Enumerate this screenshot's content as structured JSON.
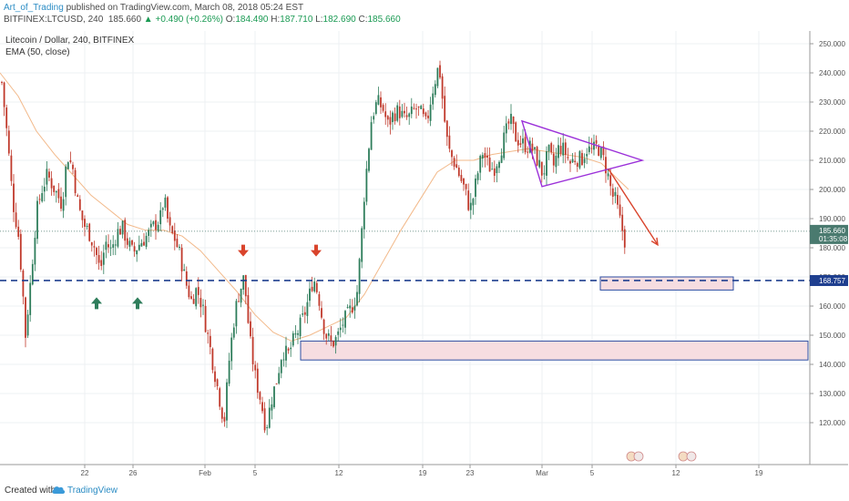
{
  "header": {
    "author": "Art_of_Trading",
    "published_text": "published on TradingView.com, March 08, 2018 05:24 EST",
    "ticker": "BITFINEX:LTCUSD, 240",
    "last": "185.660",
    "change": "▲ +0.490 (+0.26%)",
    "o_label": "O:",
    "o_value": "184.490",
    "h_label": "H:",
    "h_value": "187.710",
    "l_label": "L:",
    "l_value": "182.690",
    "c_label": "C:",
    "c_value": "185.660"
  },
  "legend": {
    "symbol": "Litecoin / Dollar, 240, BITFINEX",
    "indicator": "EMA (50, close)"
  },
  "footer": {
    "created": "Created with",
    "brand": "TradingView"
  },
  "colors": {
    "bull": "#2e7d5b",
    "bear": "#c0392b",
    "ema": "#f2b98a",
    "support": "#1f3f8f",
    "zone_fill": "#f6dde1",
    "zone_border": "#2d4ea2",
    "triangle": "#9b30d9",
    "arrow_down": "#d9442c",
    "arrow_up": "#2e7d5b",
    "price_tag": "#4a7a6f",
    "level_tag": "#1f3f8f"
  },
  "chart_data": {
    "type": "candlestick",
    "title": "Litecoin / Dollar, 240, BITFINEX",
    "indicator": "EMA (50, close)",
    "y_ticks": [
      120,
      130,
      140,
      150,
      160,
      170,
      180,
      190,
      200,
      210,
      220,
      230,
      240,
      250
    ],
    "y_tick_labels": [
      "120.000",
      "130.000",
      "140.000",
      "150.000",
      "160.000",
      "170.000",
      "180.000",
      "190.000",
      "200.000",
      "210.000",
      "220.000",
      "230.000",
      "240.000",
      "250.000"
    ],
    "x_ticks": [
      "22",
      "26",
      "Feb",
      "5",
      "12",
      "19",
      "23",
      "Mar",
      "5",
      "12",
      "19"
    ],
    "ylim": [
      113,
      255
    ],
    "current_price": 185.66,
    "current_price_label": "185.660",
    "countdown": "01:35:08",
    "support_level": 168.757,
    "support_label": "168.757",
    "waypoints": [
      [
        0,
        243
      ],
      [
        8,
        218
      ],
      [
        14,
        196
      ],
      [
        20,
        185
      ],
      [
        24,
        170
      ],
      [
        28,
        150
      ],
      [
        34,
        170
      ],
      [
        40,
        192
      ],
      [
        46,
        200
      ],
      [
        52,
        205
      ],
      [
        60,
        200
      ],
      [
        68,
        195
      ],
      [
        74,
        212
      ],
      [
        80,
        207
      ],
      [
        86,
        194
      ],
      [
        92,
        188
      ],
      [
        98,
        185
      ],
      [
        104,
        180
      ],
      [
        110,
        172
      ],
      [
        116,
        182
      ],
      [
        122,
        179
      ],
      [
        128,
        185
      ],
      [
        134,
        187
      ],
      [
        140,
        182
      ],
      [
        146,
        178
      ],
      [
        152,
        181
      ],
      [
        158,
        183
      ],
      [
        164,
        185
      ],
      [
        170,
        188
      ],
      [
        176,
        190
      ],
      [
        180,
        197
      ],
      [
        186,
        186
      ],
      [
        192,
        183
      ],
      [
        198,
        177
      ],
      [
        204,
        168
      ],
      [
        210,
        162
      ],
      [
        216,
        166
      ],
      [
        222,
        160
      ],
      [
        228,
        150
      ],
      [
        234,
        140
      ],
      [
        240,
        130
      ],
      [
        246,
        120
      ],
      [
        252,
        143
      ],
      [
        258,
        158
      ],
      [
        262,
        164
      ],
      [
        268,
        170
      ],
      [
        274,
        149
      ],
      [
        280,
        136
      ],
      [
        286,
        128
      ],
      [
        292,
        118
      ],
      [
        298,
        128
      ],
      [
        304,
        135
      ],
      [
        310,
        145
      ],
      [
        316,
        143
      ],
      [
        322,
        148
      ],
      [
        328,
        152
      ],
      [
        334,
        157
      ],
      [
        340,
        164
      ],
      [
        344,
        170
      ],
      [
        350,
        163
      ],
      [
        354,
        155
      ],
      [
        358,
        150
      ],
      [
        364,
        147
      ],
      [
        370,
        149
      ],
      [
        376,
        154
      ],
      [
        382,
        157
      ],
      [
        388,
        161
      ],
      [
        392,
        165
      ],
      [
        396,
        180
      ],
      [
        400,
        199
      ],
      [
        404,
        212
      ],
      [
        408,
        225
      ],
      [
        414,
        230
      ],
      [
        420,
        228
      ],
      [
        426,
        222
      ],
      [
        432,
        226
      ],
      [
        438,
        227
      ],
      [
        444,
        224
      ],
      [
        450,
        225
      ],
      [
        456,
        228
      ],
      [
        462,
        226
      ],
      [
        468,
        222
      ],
      [
        474,
        233
      ],
      [
        478,
        238
      ],
      [
        482,
        243
      ],
      [
        486,
        230
      ],
      [
        490,
        218
      ],
      [
        494,
        212
      ],
      [
        498,
        210
      ],
      [
        504,
        205
      ],
      [
        510,
        200
      ],
      [
        516,
        193
      ],
      [
        520,
        198
      ],
      [
        524,
        205
      ],
      [
        530,
        213
      ],
      [
        536,
        208
      ],
      [
        542,
        207
      ],
      [
        548,
        212
      ],
      [
        554,
        218
      ],
      [
        560,
        224
      ],
      [
        566,
        218
      ],
      [
        572,
        216
      ],
      [
        578,
        215
      ],
      [
        584,
        214
      ],
      [
        590,
        210
      ],
      [
        596,
        205
      ],
      [
        602,
        213
      ],
      [
        608,
        208
      ],
      [
        614,
        215
      ],
      [
        620,
        213
      ],
      [
        626,
        209
      ],
      [
        632,
        211
      ],
      [
        638,
        210
      ],
      [
        644,
        214
      ],
      [
        650,
        213
      ],
      [
        656,
        215
      ],
      [
        660,
        212
      ],
      [
        664,
        209
      ],
      [
        668,
        204
      ],
      [
        672,
        198
      ],
      [
        676,
        196
      ],
      [
        680,
        190
      ],
      [
        684,
        185
      ],
      [
        687,
        181
      ],
      [
        690,
        185
      ]
    ],
    "ema_points": [
      [
        0,
        240
      ],
      [
        20,
        232
      ],
      [
        40,
        220
      ],
      [
        60,
        212
      ],
      [
        80,
        205
      ],
      [
        100,
        198
      ],
      [
        120,
        193
      ],
      [
        140,
        188
      ],
      [
        160,
        186
      ],
      [
        180,
        186
      ],
      [
        200,
        184
      ],
      [
        220,
        179
      ],
      [
        240,
        172
      ],
      [
        260,
        165
      ],
      [
        280,
        157
      ],
      [
        300,
        151
      ],
      [
        320,
        148
      ],
      [
        340,
        150
      ],
      [
        360,
        153
      ],
      [
        380,
        156
      ],
      [
        400,
        164
      ],
      [
        420,
        175
      ],
      [
        440,
        186
      ],
      [
        460,
        196
      ],
      [
        480,
        206
      ],
      [
        500,
        210
      ],
      [
        520,
        210
      ],
      [
        540,
        212
      ],
      [
        560,
        213
      ],
      [
        580,
        214
      ],
      [
        600,
        213
      ],
      [
        620,
        212
      ],
      [
        640,
        211
      ],
      [
        660,
        209
      ],
      [
        680,
        203
      ],
      [
        690,
        200
      ]
    ],
    "annotations": {
      "triangle": [
        [
          573,
          223.5
        ],
        [
          705,
          210
        ],
        [
          595,
          201
        ]
      ],
      "arrow": [
        [
          668,
          207
        ],
        [
          722,
          181
        ]
      ],
      "zone_upper": [
        659,
        170,
        805,
        165.5
      ],
      "zone_lower": [
        330,
        148,
        887,
        141.5
      ],
      "arrows_up": [
        [
          106,
          163
        ],
        [
          151,
          163
        ]
      ],
      "arrows_down": [
        [
          267,
          177
        ],
        [
          347,
          177
        ]
      ]
    }
  }
}
